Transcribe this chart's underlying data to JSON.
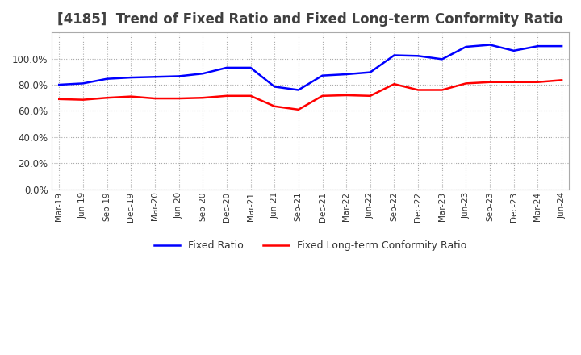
{
  "title": "[4185]  Trend of Fixed Ratio and Fixed Long-term Conformity Ratio",
  "x_labels": [
    "Mar-19",
    "Jun-19",
    "Sep-19",
    "Dec-19",
    "Mar-20",
    "Jun-20",
    "Sep-20",
    "Dec-20",
    "Mar-21",
    "Jun-21",
    "Sep-21",
    "Dec-21",
    "Mar-22",
    "Jun-22",
    "Sep-22",
    "Dec-22",
    "Mar-23",
    "Jun-23",
    "Sep-23",
    "Dec-23",
    "Mar-24",
    "Jun-24"
  ],
  "fixed_ratio": [
    0.8,
    0.81,
    0.845,
    0.855,
    0.86,
    0.865,
    0.885,
    0.93,
    0.93,
    0.785,
    0.76,
    0.87,
    0.88,
    0.895,
    1.025,
    1.02,
    0.995,
    1.09,
    1.105,
    1.06,
    1.095,
    1.095
  ],
  "fixed_lt_ratio": [
    0.69,
    0.685,
    0.7,
    0.71,
    0.695,
    0.695,
    0.7,
    0.715,
    0.715,
    0.635,
    0.61,
    0.715,
    0.72,
    0.715,
    0.805,
    0.76,
    0.76,
    0.81,
    0.82,
    0.82,
    0.82,
    0.835
  ],
  "fixed_ratio_color": "#0000FF",
  "fixed_lt_ratio_color": "#FF0000",
  "ylim": [
    0.0,
    1.2
  ],
  "yticks": [
    0.0,
    0.2,
    0.4,
    0.6,
    0.8,
    1.0
  ],
  "background_color": "#FFFFFF",
  "grid_color": "#AAAAAA",
  "title_color": "#404040",
  "title_fontsize": 12,
  "line_width": 1.8
}
